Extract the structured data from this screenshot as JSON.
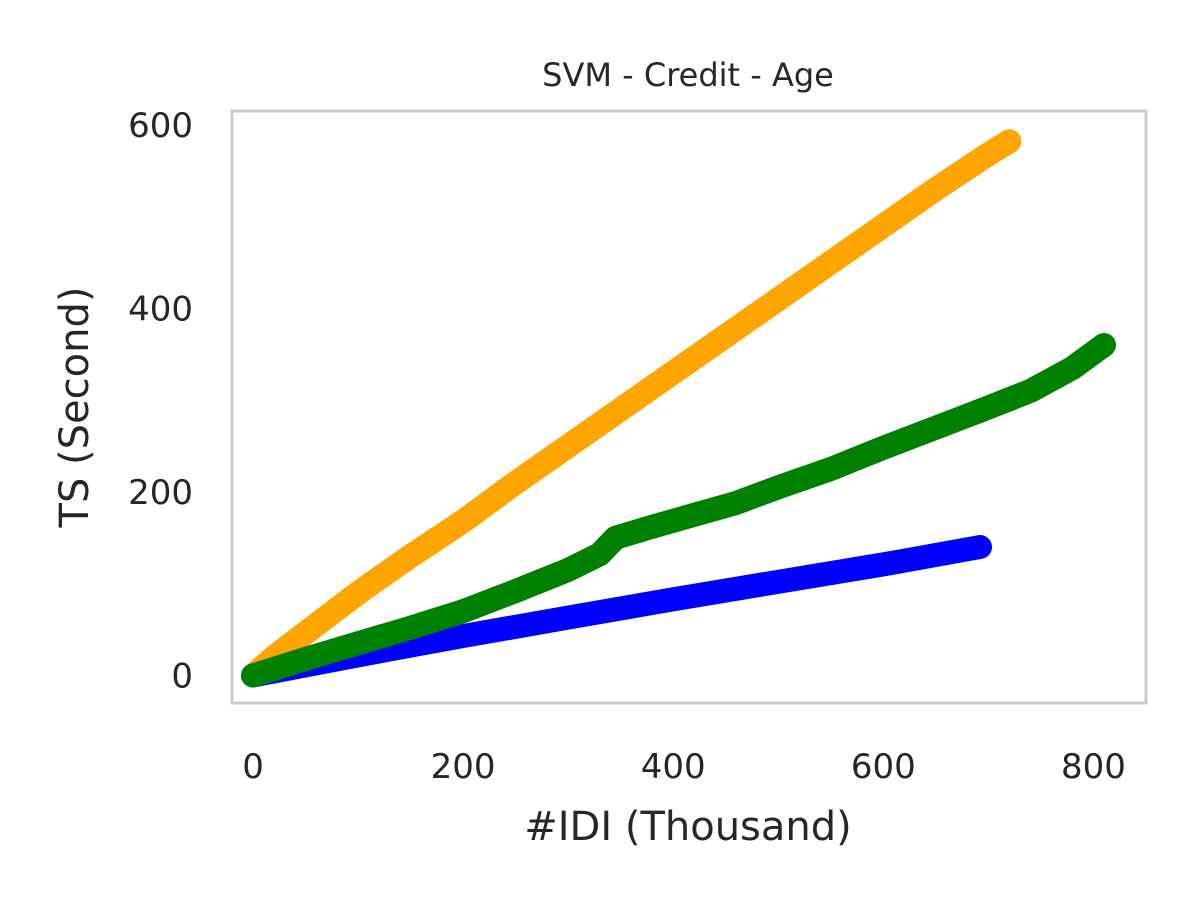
{
  "chart_data": {
    "type": "line",
    "title": "SVM - Credit - Age",
    "xlabel": "#IDI (Thousand)",
    "ylabel": "TS (Second)",
    "xlim": [
      -20,
      850
    ],
    "ylim": [
      -30,
      615
    ],
    "xticks": [
      0,
      200,
      400,
      600,
      800
    ],
    "yticks": [
      0,
      200,
      400,
      600
    ],
    "grid": false,
    "series": [
      {
        "color": "#ffa500",
        "x": [
          0,
          20,
          60,
          100,
          150,
          200,
          250,
          300,
          350,
          400,
          450,
          500,
          550,
          600,
          650,
          700,
          720
        ],
        "y": [
          0,
          20,
          55,
          90,
          130,
          168,
          210,
          250,
          290,
          330,
          370,
          410,
          450,
          490,
          530,
          568,
          582
        ]
      },
      {
        "color": "#008000",
        "x": [
          0,
          50,
          100,
          150,
          200,
          250,
          300,
          330,
          345,
          380,
          420,
          460,
          500,
          550,
          600,
          650,
          700,
          740,
          780,
          810
        ],
        "y": [
          0,
          18,
          35,
          52,
          70,
          92,
          115,
          132,
          150,
          162,
          175,
          188,
          205,
          225,
          248,
          270,
          292,
          310,
          335,
          360
        ]
      },
      {
        "color": "#0000ff",
        "x": [
          0,
          100,
          200,
          300,
          400,
          500,
          600,
          692
        ],
        "y": [
          0,
          22,
          43,
          63,
          83,
          102,
          121,
          140
        ]
      }
    ]
  }
}
